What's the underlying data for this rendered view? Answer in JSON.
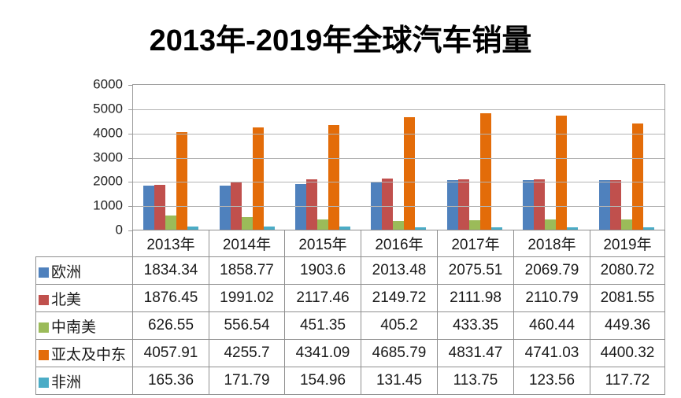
{
  "title": "2013年-2019年全球汽车销量",
  "chart_data": {
    "type": "bar",
    "title": "2013年-2019年全球汽车销量",
    "categories": [
      "2013年",
      "2014年",
      "2015年",
      "2016年",
      "2017年",
      "2018年",
      "2019年"
    ],
    "series": [
      {
        "name": "欧洲",
        "color": "#4F81BD",
        "values": [
          1834.34,
          1858.77,
          1903.6,
          2013.48,
          2075.51,
          2069.79,
          2080.72
        ]
      },
      {
        "name": "北美",
        "color": "#C0504D",
        "values": [
          1876.45,
          1991.02,
          2117.46,
          2149.72,
          2111.98,
          2110.79,
          2081.55
        ]
      },
      {
        "name": "中南美",
        "color": "#9BBB59",
        "values": [
          626.55,
          556.54,
          451.35,
          405.2,
          433.35,
          460.44,
          449.36
        ]
      },
      {
        "name": "亚太及中东",
        "color": "#E36C09",
        "values": [
          4057.91,
          4255.7,
          4341.09,
          4685.79,
          4831.47,
          4741.03,
          4400.32
        ]
      },
      {
        "name": "非洲",
        "color": "#4BACC6",
        "values": [
          165.36,
          171.79,
          154.96,
          131.45,
          113.75,
          123.56,
          117.72
        ]
      }
    ],
    "xlabel": "",
    "ylabel": "",
    "ylim": [
      0,
      6000
    ],
    "ytick_interval": 1000,
    "ytick_labels": [
      "0",
      "1000",
      "2000",
      "3000",
      "4000",
      "5000",
      "6000"
    ],
    "grid": true,
    "legend_position": "table-left-column"
  }
}
